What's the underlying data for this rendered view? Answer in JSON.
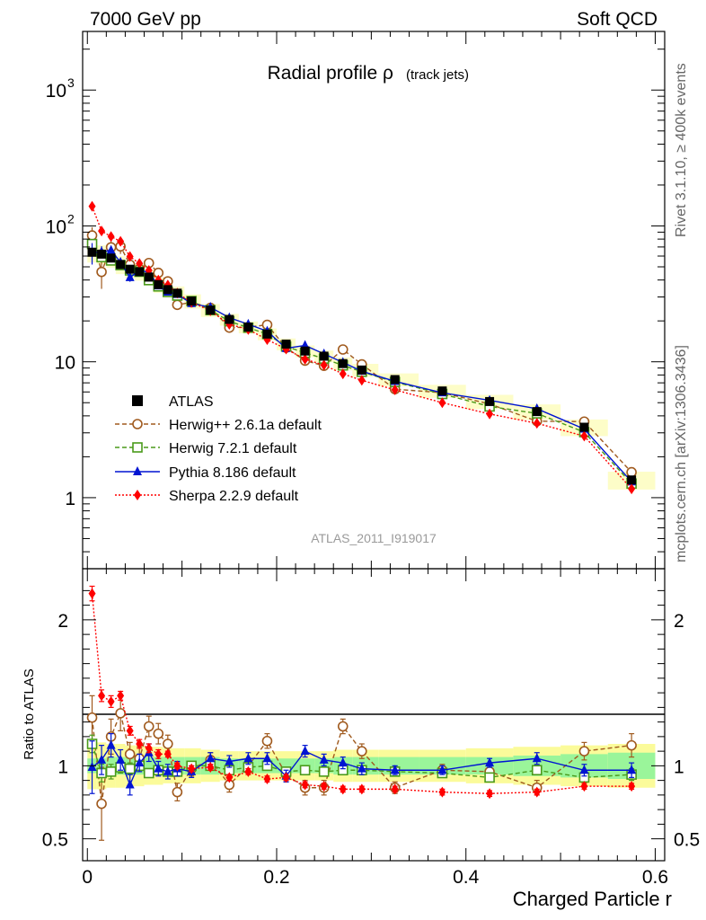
{
  "header": {
    "left": "7000 GeV pp",
    "right": "Soft QCD"
  },
  "side": {
    "rivet": "Rivet 3.1.10, ≥ 400k events",
    "mcplots": "mcplots.cern.ch [arXiv:1306.3436]"
  },
  "title": {
    "main": "Radial profile ρ",
    "sub": "(track jets)"
  },
  "watermark": "ATLAS_2011_I919017",
  "xlabel": "Charged Particle r",
  "ratio_ylabel": "Ratio to ATLAS",
  "chart_data": {
    "type": "line",
    "x": [
      0.005,
      0.015,
      0.025,
      0.035,
      0.045,
      0.055,
      0.065,
      0.075,
      0.085,
      0.095,
      0.11,
      0.13,
      0.15,
      0.17,
      0.19,
      0.21,
      0.23,
      0.25,
      0.27,
      0.29,
      0.325,
      0.375,
      0.425,
      0.475,
      0.525,
      0.575
    ],
    "xlim": [
      -0.005,
      0.61
    ],
    "top": {
      "yscale": "log",
      "ylim": [
        0.3,
        2700
      ],
      "yticks": [
        1,
        10,
        100,
        1000
      ],
      "yticklabels": [
        "1",
        "10",
        "10^2",
        "10^3"
      ]
    },
    "ratio": {
      "ylim": [
        0.35,
        2.35
      ],
      "yticks": [
        0.5,
        1,
        2
      ],
      "yticklabels": [
        "0.5",
        "1",
        "2"
      ]
    },
    "xticks": [
      0,
      0.2,
      0.4,
      0.6
    ],
    "xticklabels": [
      "0",
      "0.2",
      "0.4",
      "0.6"
    ],
    "data": {
      "name": "ATLAS",
      "values": [
        64,
        62,
        58,
        52,
        48,
        46,
        42,
        37,
        34,
        32,
        28,
        24,
        20.5,
        18,
        16,
        13.5,
        12,
        11,
        9.7,
        8.7,
        7.4,
        6.1,
        5.1,
        4.3,
        3.3,
        1.35
      ]
    },
    "band": {
      "inner": [
        0.05,
        0.05,
        0.06,
        0.06,
        0.06,
        0.06,
        0.06,
        0.06,
        0.06,
        0.06,
        0.06,
        0.06,
        0.05,
        0.05,
        0.05,
        0.05,
        0.05,
        0.05,
        0.06,
        0.06,
        0.06,
        0.06,
        0.06,
        0.07,
        0.08,
        0.09
      ],
      "outer": [
        0.16,
        0.16,
        0.15,
        0.15,
        0.14,
        0.14,
        0.13,
        0.13,
        0.12,
        0.12,
        0.12,
        0.11,
        0.1,
        0.1,
        0.1,
        0.1,
        0.1,
        0.1,
        0.11,
        0.11,
        0.11,
        0.11,
        0.12,
        0.13,
        0.14,
        0.15
      ]
    },
    "series": [
      {
        "name": "Herwig++ 2.6.1a default",
        "color": "#a05a1e",
        "marker": "open-circle",
        "dash": "5,3",
        "ratio": [
          1.33,
          0.74,
          1.2,
          1.36,
          1.08,
          1.05,
          1.27,
          1.22,
          1.15,
          0.82,
          0.98,
          1.04,
          0.87,
          1.0,
          1.17,
          0.94,
          0.85,
          0.85,
          1.27,
          1.1,
          0.85,
          0.97,
          0.96,
          0.85,
          1.1,
          1.14
        ],
        "rerr": [
          0.15,
          0.25,
          0.12,
          0.12,
          0.08,
          0.08,
          0.07,
          0.07,
          0.06,
          0.06,
          0.05,
          0.05,
          0.05,
          0.05,
          0.05,
          0.05,
          0.05,
          0.05,
          0.05,
          0.05,
          0.04,
          0.04,
          0.04,
          0.05,
          0.06,
          0.08
        ]
      },
      {
        "name": "Herwig 7.2.1 default",
        "color": "#4a9a1a",
        "marker": "open-square",
        "dash": "5,3",
        "ratio": [
          1.15,
          0.95,
          0.96,
          0.99,
          0.98,
          1.0,
          0.95,
          0.97,
          0.96,
          0.96,
          1.0,
          1.0,
          0.97,
          0.99,
          1.0,
          0.96,
          0.97,
          0.96,
          0.97,
          0.97,
          0.96,
          0.95,
          0.92,
          0.97,
          0.92,
          0.94
        ],
        "rerr": [
          0.06,
          0.06,
          0.05,
          0.04,
          0.04,
          0.03,
          0.03,
          0.03,
          0.03,
          0.03,
          0.02,
          0.02,
          0.02,
          0.02,
          0.02,
          0.02,
          0.02,
          0.02,
          0.02,
          0.02,
          0.02,
          0.02,
          0.02,
          0.03,
          0.03,
          0.04
        ]
      },
      {
        "name": "Pythia 8.186 default",
        "color": "#0014d2",
        "marker": "filled-triangle",
        "dash": "",
        "ratio": [
          0.99,
          1.04,
          1.14,
          1.04,
          0.87,
          1.02,
          1.09,
          0.98,
          0.96,
          0.98,
          0.96,
          1.05,
          1.03,
          1.05,
          1.05,
          0.93,
          1.1,
          1.04,
          1.02,
          0.98,
          0.97,
          0.97,
          1.02,
          1.05,
          0.97,
          0.97
        ],
        "rerr": [
          0.18,
          0.1,
          0.08,
          0.07,
          0.07,
          0.06,
          0.06,
          0.05,
          0.05,
          0.05,
          0.04,
          0.04,
          0.04,
          0.04,
          0.04,
          0.04,
          0.04,
          0.04,
          0.04,
          0.04,
          0.03,
          0.03,
          0.03,
          0.04,
          0.04,
          0.05
        ]
      },
      {
        "name": "Sherpa 2.2.9 default",
        "color": "#ff0000",
        "marker": "filled-diamond",
        "dash": "2,2",
        "ratio": [
          2.18,
          1.48,
          1.44,
          1.48,
          1.24,
          1.15,
          1.12,
          1.08,
          1.08,
          1.0,
          0.98,
          0.99,
          0.92,
          0.96,
          0.91,
          0.92,
          0.87,
          0.86,
          0.84,
          0.84,
          0.84,
          0.82,
          0.81,
          0.82,
          0.86,
          0.86
        ],
        "rerr": [
          0.05,
          0.04,
          0.04,
          0.03,
          0.03,
          0.03,
          0.03,
          0.03,
          0.02,
          0.02,
          0.02,
          0.02,
          0.02,
          0.02,
          0.02,
          0.02,
          0.02,
          0.02,
          0.02,
          0.02,
          0.02,
          0.02,
          0.02,
          0.02,
          0.02,
          0.02
        ]
      }
    ]
  }
}
